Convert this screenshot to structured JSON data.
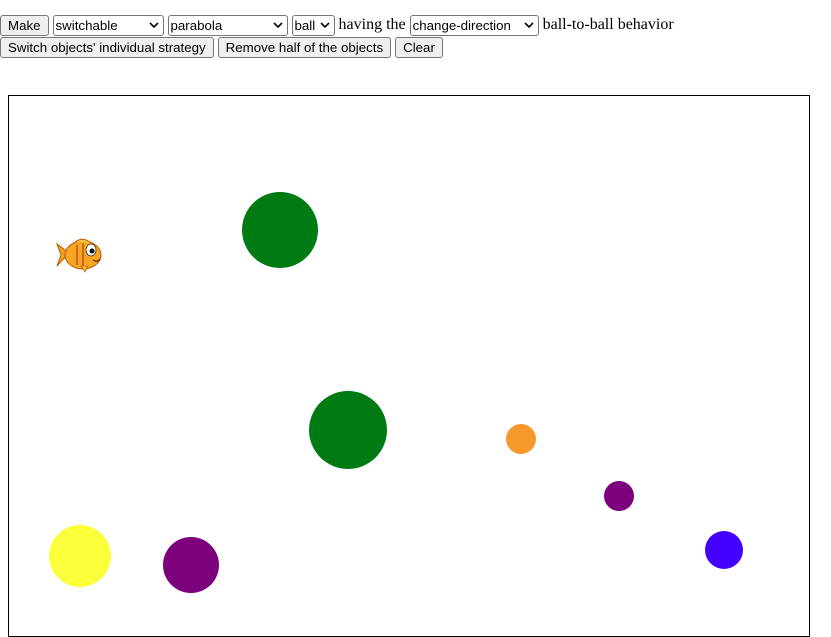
{
  "toolbar": {
    "make_label": "Make",
    "type_select": {
      "value": "switchable",
      "options": [
        "switchable"
      ]
    },
    "strategy_select": {
      "value": "parabola",
      "options": [
        "parabola"
      ]
    },
    "shape_select": {
      "value": "ball",
      "options": [
        "ball"
      ]
    },
    "having_text": "having the",
    "behavior_select": {
      "value": "change-direction",
      "options": [
        "change-direction"
      ]
    },
    "behavior_suffix": "ball-to-ball behavior",
    "switch_label": "Switch objects' individual strategy",
    "remove_label": "Remove half of the objects",
    "clear_label": "Clear"
  },
  "canvas": {
    "objects": [
      {
        "kind": "fish-icon",
        "name": "fish"
      },
      {
        "kind": "ball",
        "color": "#007a12"
      },
      {
        "kind": "ball",
        "color": "#007a12"
      },
      {
        "kind": "ball",
        "color": "#f59a2a"
      },
      {
        "kind": "ball",
        "color": "#7d007d"
      },
      {
        "kind": "ball",
        "color": "#4400ff"
      },
      {
        "kind": "ball",
        "color": "#fbff3a"
      },
      {
        "kind": "ball",
        "color": "#7d007d"
      }
    ]
  }
}
